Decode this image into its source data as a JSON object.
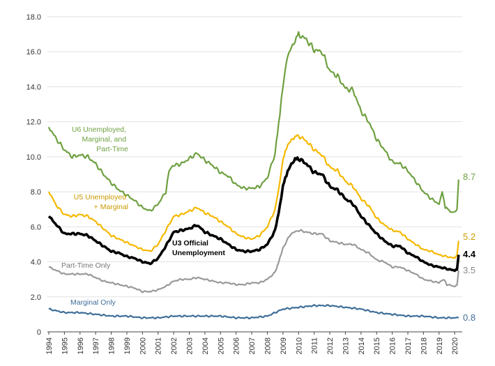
{
  "chart_data": {
    "type": "line",
    "title": "",
    "xlabel": "",
    "ylabel": "",
    "ylim": [
      0,
      18
    ],
    "y_ticks": [
      "0",
      "2.0",
      "4.0",
      "6.0",
      "8.0",
      "10.0",
      "12.0",
      "14.0",
      "16.0",
      "18.0"
    ],
    "y_tick_values": [
      0,
      2,
      4,
      6,
      8,
      10,
      12,
      14,
      16,
      18
    ],
    "x_ticks": [
      "1994",
      "1995",
      "1996",
      "1997",
      "1998",
      "1999",
      "2000",
      "2001",
      "2002",
      "2003",
      "2004",
      "2005",
      "2006",
      "2007",
      "2008",
      "2009",
      "2010",
      "2011",
      "2012",
      "2013",
      "2014",
      "2015",
      "2016",
      "2017",
      "2018",
      "2019",
      "2020"
    ],
    "x_range": [
      1994,
      2020.35
    ],
    "series": [
      {
        "name": "U6 Unemployed, Marginal, and Part-Time",
        "label_lines": [
          "U6 Unemployed,",
          "Marginal, and",
          "Part-Time"
        ],
        "color": "#6fa041",
        "end_value": "8.7",
        "points": [
          [
            1994,
            11.7
          ],
          [
            1994.5,
            11.0
          ],
          [
            1995,
            10.4
          ],
          [
            1995.5,
            10.0
          ],
          [
            1996,
            10.1
          ],
          [
            1996.5,
            10.0
          ],
          [
            1997,
            9.6
          ],
          [
            1997.5,
            9.0
          ],
          [
            1998,
            8.5
          ],
          [
            1998.5,
            8.1
          ],
          [
            1999,
            7.8
          ],
          [
            1999.5,
            7.5
          ],
          [
            2000,
            7.1
          ],
          [
            2000.5,
            6.9
          ],
          [
            2001,
            7.3
          ],
          [
            2001.5,
            8.0
          ],
          [
            2001.7,
            9.2
          ],
          [
            2002,
            9.5
          ],
          [
            2002.5,
            9.6
          ],
          [
            2003,
            9.9
          ],
          [
            2003.5,
            10.2
          ],
          [
            2004,
            9.8
          ],
          [
            2004.5,
            9.5
          ],
          [
            2005,
            9.1
          ],
          [
            2005.5,
            8.9
          ],
          [
            2006,
            8.4
          ],
          [
            2006.5,
            8.2
          ],
          [
            2007,
            8.2
          ],
          [
            2007.5,
            8.3
          ],
          [
            2008,
            8.8
          ],
          [
            2008.5,
            10.2
          ],
          [
            2008.8,
            12.5
          ],
          [
            2009,
            14.0
          ],
          [
            2009.3,
            15.8
          ],
          [
            2009.7,
            16.5
          ],
          [
            2010,
            17.0
          ],
          [
            2010.5,
            16.7
          ],
          [
            2011,
            16.1
          ],
          [
            2011.5,
            16.0
          ],
          [
            2012,
            14.9
          ],
          [
            2012.5,
            14.6
          ],
          [
            2013,
            13.9
          ],
          [
            2013.5,
            13.8
          ],
          [
            2014,
            12.6
          ],
          [
            2014.5,
            12.0
          ],
          [
            2015,
            11.0
          ],
          [
            2015.5,
            10.4
          ],
          [
            2016,
            9.7
          ],
          [
            2016.5,
            9.6
          ],
          [
            2017,
            9.2
          ],
          [
            2017.5,
            8.6
          ],
          [
            2018,
            8.0
          ],
          [
            2018.5,
            7.6
          ],
          [
            2019,
            7.3
          ],
          [
            2019.2,
            8.0
          ],
          [
            2019.4,
            7.1
          ],
          [
            2019.7,
            6.9
          ],
          [
            2020,
            6.8
          ],
          [
            2020.15,
            7.0
          ],
          [
            2020.25,
            8.7
          ]
        ]
      },
      {
        "name": "U5 Unemployed + Marginal",
        "label_lines": [
          "U5 Unemployed",
          "+ Marginal"
        ],
        "color": "#f5b800",
        "end_value": "5.2",
        "points": [
          [
            1994,
            8.0
          ],
          [
            1994.5,
            7.2
          ],
          [
            1995,
            6.7
          ],
          [
            1995.5,
            6.6
          ],
          [
            1996,
            6.7
          ],
          [
            1996.5,
            6.6
          ],
          [
            1997,
            6.3
          ],
          [
            1997.5,
            5.9
          ],
          [
            1998,
            5.5
          ],
          [
            1998.5,
            5.3
          ],
          [
            1999,
            5.1
          ],
          [
            1999.5,
            4.9
          ],
          [
            2000,
            4.7
          ],
          [
            2000.5,
            4.6
          ],
          [
            2001,
            5.0
          ],
          [
            2001.5,
            5.8
          ],
          [
            2002,
            6.6
          ],
          [
            2002.5,
            6.7
          ],
          [
            2003,
            6.9
          ],
          [
            2003.5,
            7.1
          ],
          [
            2004,
            6.8
          ],
          [
            2004.5,
            6.6
          ],
          [
            2005,
            6.3
          ],
          [
            2005.5,
            6.0
          ],
          [
            2006,
            5.6
          ],
          [
            2006.5,
            5.4
          ],
          [
            2007,
            5.3
          ],
          [
            2007.5,
            5.5
          ],
          [
            2008,
            6.0
          ],
          [
            2008.5,
            7.0
          ],
          [
            2008.8,
            8.6
          ],
          [
            2009,
            9.8
          ],
          [
            2009.3,
            10.7
          ],
          [
            2009.7,
            11.1
          ],
          [
            2010,
            11.2
          ],
          [
            2010.5,
            10.9
          ],
          [
            2011,
            10.4
          ],
          [
            2011.5,
            10.1
          ],
          [
            2012,
            9.4
          ],
          [
            2012.5,
            9.2
          ],
          [
            2013,
            8.6
          ],
          [
            2013.5,
            8.3
          ],
          [
            2014,
            7.6
          ],
          [
            2014.5,
            7.2
          ],
          [
            2015,
            6.5
          ],
          [
            2015.5,
            6.1
          ],
          [
            2016,
            5.8
          ],
          [
            2016.5,
            5.7
          ],
          [
            2017,
            5.3
          ],
          [
            2017.5,
            5.0
          ],
          [
            2018,
            4.7
          ],
          [
            2018.5,
            4.6
          ],
          [
            2019,
            4.4
          ],
          [
            2019.5,
            4.3
          ],
          [
            2020,
            4.2
          ],
          [
            2020.15,
            4.4
          ],
          [
            2020.25,
            5.2
          ]
        ]
      },
      {
        "name": "U3 Official Unemployment",
        "label_lines": [
          "U3 Official",
          "Unemployment"
        ],
        "color": "#000000",
        "end_value": "4.4",
        "points": [
          [
            1994,
            6.6
          ],
          [
            1994.5,
            6.1
          ],
          [
            1995,
            5.6
          ],
          [
            1995.5,
            5.6
          ],
          [
            1996,
            5.6
          ],
          [
            1996.5,
            5.5
          ],
          [
            1997,
            5.2
          ],
          [
            1997.5,
            4.9
          ],
          [
            1998,
            4.6
          ],
          [
            1998.5,
            4.5
          ],
          [
            1999,
            4.3
          ],
          [
            1999.5,
            4.2
          ],
          [
            2000,
            4.0
          ],
          [
            2000.5,
            3.9
          ],
          [
            2001,
            4.2
          ],
          [
            2001.5,
            4.9
          ],
          [
            2002,
            5.7
          ],
          [
            2002.5,
            5.8
          ],
          [
            2003,
            5.9
          ],
          [
            2003.5,
            6.1
          ],
          [
            2004,
            5.7
          ],
          [
            2004.5,
            5.5
          ],
          [
            2005,
            5.3
          ],
          [
            2005.5,
            5.0
          ],
          [
            2006,
            4.7
          ],
          [
            2006.5,
            4.6
          ],
          [
            2007,
            4.6
          ],
          [
            2007.5,
            4.7
          ],
          [
            2008,
            5.0
          ],
          [
            2008.5,
            5.8
          ],
          [
            2008.8,
            7.2
          ],
          [
            2009,
            8.3
          ],
          [
            2009.3,
            9.2
          ],
          [
            2009.7,
            9.8
          ],
          [
            2010,
            9.9
          ],
          [
            2010.5,
            9.6
          ],
          [
            2011,
            9.1
          ],
          [
            2011.5,
            9.0
          ],
          [
            2012,
            8.3
          ],
          [
            2012.5,
            8.1
          ],
          [
            2013,
            7.6
          ],
          [
            2013.5,
            7.3
          ],
          [
            2014,
            6.6
          ],
          [
            2014.5,
            6.1
          ],
          [
            2015,
            5.6
          ],
          [
            2015.5,
            5.2
          ],
          [
            2016,
            4.9
          ],
          [
            2016.5,
            4.9
          ],
          [
            2017,
            4.5
          ],
          [
            2017.5,
            4.3
          ],
          [
            2018,
            4.0
          ],
          [
            2018.5,
            3.8
          ],
          [
            2019,
            3.7
          ],
          [
            2019.5,
            3.6
          ],
          [
            2020,
            3.5
          ],
          [
            2020.15,
            3.6
          ],
          [
            2020.25,
            4.4
          ]
        ]
      },
      {
        "name": "Part-Time Only",
        "label_lines": [
          "Part-Time Only"
        ],
        "color": "#999999",
        "end_value": "3.5",
        "points": [
          [
            1994,
            3.7
          ],
          [
            1994.5,
            3.5
          ],
          [
            1995,
            3.3
          ],
          [
            1995.5,
            3.3
          ],
          [
            1996,
            3.3
          ],
          [
            1996.5,
            3.3
          ],
          [
            1997,
            3.1
          ],
          [
            1997.5,
            2.9
          ],
          [
            1998,
            2.8
          ],
          [
            1998.5,
            2.7
          ],
          [
            1999,
            2.6
          ],
          [
            1999.5,
            2.5
          ],
          [
            2000,
            2.3
          ],
          [
            2000.5,
            2.3
          ],
          [
            2001,
            2.4
          ],
          [
            2001.5,
            2.6
          ],
          [
            2002,
            2.9
          ],
          [
            2002.5,
            3.0
          ],
          [
            2003,
            3.0
          ],
          [
            2003.5,
            3.1
          ],
          [
            2004,
            3.0
          ],
          [
            2004.5,
            2.9
          ],
          [
            2005,
            2.8
          ],
          [
            2005.5,
            2.8
          ],
          [
            2006,
            2.7
          ],
          [
            2006.5,
            2.7
          ],
          [
            2007,
            2.8
          ],
          [
            2007.5,
            2.8
          ],
          [
            2008,
            3.0
          ],
          [
            2008.5,
            3.4
          ],
          [
            2008.8,
            4.2
          ],
          [
            2009,
            4.8
          ],
          [
            2009.5,
            5.6
          ],
          [
            2010,
            5.8
          ],
          [
            2010.5,
            5.7
          ],
          [
            2011,
            5.6
          ],
          [
            2011.5,
            5.6
          ],
          [
            2012,
            5.2
          ],
          [
            2012.5,
            5.1
          ],
          [
            2013,
            5.0
          ],
          [
            2013.5,
            5.0
          ],
          [
            2014,
            4.7
          ],
          [
            2014.5,
            4.5
          ],
          [
            2015,
            4.1
          ],
          [
            2015.5,
            4.0
          ],
          [
            2016,
            3.7
          ],
          [
            2016.5,
            3.7
          ],
          [
            2017,
            3.5
          ],
          [
            2017.5,
            3.3
          ],
          [
            2018,
            3.0
          ],
          [
            2018.5,
            2.9
          ],
          [
            2019,
            2.8
          ],
          [
            2019.3,
            3.0
          ],
          [
            2019.5,
            2.7
          ],
          [
            2020,
            2.6
          ],
          [
            2020.15,
            2.7
          ],
          [
            2020.25,
            3.5
          ]
        ]
      },
      {
        "name": "Marginal Only",
        "label_lines": [
          "Marginal Only"
        ],
        "color": "#3f6e99",
        "end_value": "0.8",
        "points": [
          [
            1994,
            1.3
          ],
          [
            1994.5,
            1.2
          ],
          [
            1995,
            1.1
          ],
          [
            1996,
            1.1
          ],
          [
            1997,
            1.0
          ],
          [
            1998,
            0.9
          ],
          [
            1999,
            0.9
          ],
          [
            2000,
            0.8
          ],
          [
            2001,
            0.8
          ],
          [
            2002,
            0.9
          ],
          [
            2003,
            0.9
          ],
          [
            2004,
            0.9
          ],
          [
            2005,
            0.9
          ],
          [
            2006,
            0.8
          ],
          [
            2007,
            0.8
          ],
          [
            2008,
            0.9
          ],
          [
            2009,
            1.3
          ],
          [
            2010,
            1.4
          ],
          [
            2011,
            1.5
          ],
          [
            2012,
            1.5
          ],
          [
            2013,
            1.4
          ],
          [
            2014,
            1.3
          ],
          [
            2015,
            1.1
          ],
          [
            2016,
            1.0
          ],
          [
            2017,
            0.9
          ],
          [
            2018,
            0.9
          ],
          [
            2019,
            0.8
          ],
          [
            2020,
            0.8
          ],
          [
            2020.25,
            0.8
          ]
        ]
      }
    ]
  }
}
